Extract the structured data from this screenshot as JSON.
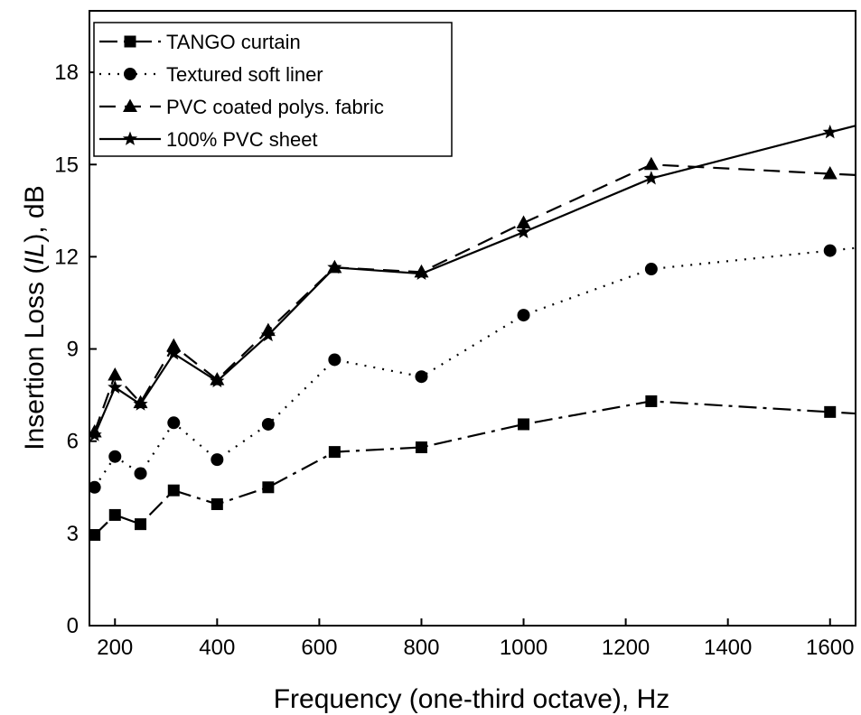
{
  "chart_data": {
    "type": "line",
    "xlabel": "Frequency (one-third octave), Hz",
    "ylabel_parts": [
      "Insertion Loss (",
      "IL",
      "), dB"
    ],
    "xlim": [
      150,
      1650
    ],
    "ylim": [
      0,
      20
    ],
    "xticks": [
      200,
      400,
      600,
      800,
      1000,
      1200,
      1400,
      1600
    ],
    "yticks": [
      0,
      3,
      6,
      9,
      12,
      15,
      18
    ],
    "legend_position": "top-left",
    "grid": false,
    "x": [
      160,
      200,
      250,
      315,
      400,
      500,
      630,
      800,
      1000,
      1250,
      1600
    ],
    "series": [
      {
        "name": "TANGO curtain",
        "marker": "square",
        "dash": "dashdot",
        "values": [
          2.95,
          3.6,
          3.3,
          4.4,
          3.95,
          4.5,
          5.65,
          5.8,
          6.55,
          7.3,
          6.95
        ]
      },
      {
        "name": "Textured soft liner",
        "marker": "circle",
        "dash": "dot",
        "values": [
          4.5,
          5.5,
          4.95,
          6.6,
          5.4,
          6.55,
          8.65,
          8.1,
          10.1,
          11.6,
          12.2
        ]
      },
      {
        "name": "PVC coated polys. fabric",
        "marker": "triangle",
        "dash": "dash",
        "values": [
          6.3,
          8.15,
          7.25,
          9.1,
          8.0,
          9.6,
          11.65,
          11.5,
          13.1,
          15.0,
          14.7
        ]
      },
      {
        "name": "100% PVC sheet",
        "marker": "star",
        "dash": "solid",
        "values": [
          6.2,
          7.75,
          7.2,
          8.85,
          7.95,
          9.45,
          11.65,
          11.45,
          12.8,
          14.55,
          16.05
        ]
      }
    ]
  }
}
